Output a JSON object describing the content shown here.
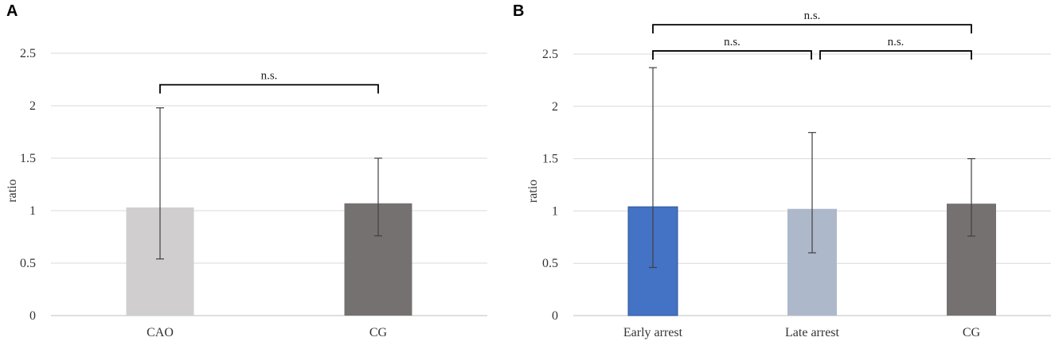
{
  "chart_data": [
    {
      "panel": "A",
      "type": "bar",
      "ylabel": "ratio",
      "xlabel": "",
      "ylim": [
        0,
        2.5
      ],
      "yticks": [
        0,
        0.5,
        1,
        1.5,
        2,
        2.5
      ],
      "ytick_labels": [
        "0",
        "0.5",
        "1",
        "1.5",
        "2",
        "2.5"
      ],
      "grid": true,
      "categories": [
        "CAO",
        "CG"
      ],
      "values": [
        1.03,
        1.07
      ],
      "error_low": [
        0.54,
        0.76
      ],
      "error_high": [
        1.98,
        1.5
      ],
      "colors": [
        "#d0cecf",
        "#767171"
      ],
      "annotations": [
        {
          "from": 0,
          "to": 1,
          "label": "n.s.",
          "level": 2.2
        }
      ]
    },
    {
      "panel": "B",
      "type": "bar",
      "ylabel": "ratio",
      "xlabel": "",
      "ylim": [
        0,
        2.5
      ],
      "yticks": [
        0,
        0.5,
        1,
        1.5,
        2,
        2.5
      ],
      "ytick_labels": [
        "0",
        "0.5",
        "1",
        "1.5",
        "2",
        "2.5"
      ],
      "grid": true,
      "categories": [
        "Early arrest",
        "Late arrest",
        "CG"
      ],
      "values": [
        1.04,
        1.02,
        1.07
      ],
      "error_low": [
        0.46,
        0.6,
        0.76
      ],
      "error_high": [
        2.37,
        1.75,
        1.5
      ],
      "colors": [
        "#4472c4",
        "#adb9ca",
        "#767171"
      ],
      "annotations": [
        {
          "from": 0,
          "to": 1,
          "label": "n.s.",
          "level": 2.53
        },
        {
          "from": 1,
          "to": 2,
          "label": "n.s.",
          "level": 2.53
        },
        {
          "from": 0,
          "to": 2,
          "label": "n.s.",
          "level": 2.78
        }
      ]
    }
  ]
}
